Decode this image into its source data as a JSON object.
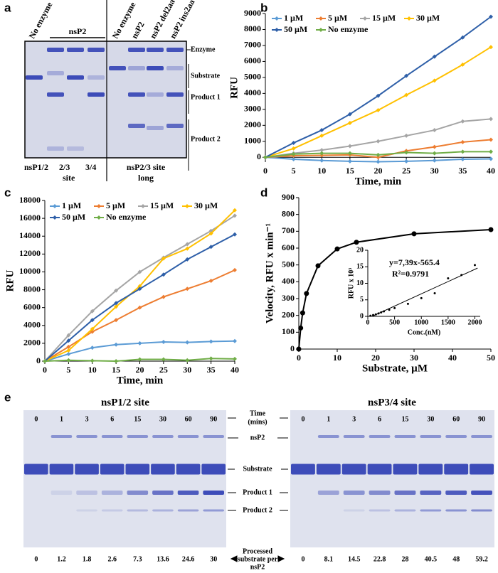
{
  "figure_panels": [
    "a",
    "b",
    "c",
    "d",
    "e"
  ],
  "gel_a": {
    "lane_labels": [
      "No enzyme",
      "nsP2",
      "No enzyme",
      "nsP2",
      "nsP2 del2aa",
      "nsP2 ins2aa"
    ],
    "band_labels": [
      "Enzyme",
      "Substrate",
      "Product 1",
      "Product 2"
    ],
    "bottom_labels": [
      "nsP1/2",
      "2/3",
      "3/4",
      "site",
      "nsP2/3 site",
      "long"
    ]
  },
  "gel_e": {
    "titles": [
      "nsP1/2 site",
      "nsP3/4 site"
    ],
    "time_label": [
      "Time",
      "(mins)"
    ],
    "times": [
      [
        0,
        1,
        3,
        6,
        15,
        30,
        60,
        90
      ],
      [
        0,
        1,
        3,
        6,
        15,
        30,
        60,
        90
      ]
    ],
    "band_labels": [
      "nsP2",
      "Substrate",
      "Product 1",
      "Product 2"
    ],
    "processed_label": [
      "Processed",
      "substrate per",
      "nsP2"
    ],
    "processed": [
      [
        0,
        1.2,
        1.8,
        2.6,
        7.3,
        13.6,
        24.6,
        30
      ],
      [
        0,
        8.1,
        14.5,
        22.8,
        28,
        40.5,
        48,
        59.2
      ]
    ]
  },
  "chart_data": [
    {
      "type": "line",
      "y_label": "RFU",
      "x_label": "Time, min",
      "x": [
        0,
        5,
        10,
        15,
        20,
        25,
        30,
        35,
        40
      ],
      "xlim": [
        0,
        40
      ],
      "xticks": [
        0,
        5,
        10,
        15,
        20,
        25,
        30,
        35,
        40
      ],
      "ylim": [
        -300,
        9000
      ],
      "yticks": [
        0,
        1000,
        2000,
        3000,
        4000,
        5000,
        6000,
        7000,
        8000,
        9000
      ],
      "legend": "upper left",
      "series": [
        {
          "name": "1 µM",
          "color": "#5b9bd5",
          "values": [
            0,
            -120,
            -200,
            -250,
            -280,
            -250,
            -200,
            -120,
            -100
          ]
        },
        {
          "name": "5 µM",
          "color": "#ed7d31",
          "values": [
            0,
            100,
            120,
            150,
            0,
            400,
            650,
            950,
            1100
          ]
        },
        {
          "name": "15 µM",
          "color": "#a5a5a5",
          "values": [
            0,
            250,
            450,
            700,
            1000,
            1350,
            1700,
            2250,
            2400
          ]
        },
        {
          "name": "30 µM",
          "color": "#ffc000",
          "values": [
            0,
            550,
            1350,
            2150,
            2950,
            3900,
            4800,
            5800,
            6900
          ]
        },
        {
          "name": "50 µM",
          "color": "#2e5fa8",
          "values": [
            0,
            900,
            1700,
            2700,
            3850,
            5100,
            6300,
            7500,
            8800
          ]
        },
        {
          "name": "No enzyme",
          "color": "#70ad47",
          "values": [
            0,
            200,
            250,
            250,
            150,
            300,
            250,
            350,
            350
          ]
        }
      ]
    },
    {
      "type": "line",
      "y_label": "RFU",
      "x_label": "Time, min",
      "x": [
        0,
        5,
        10,
        15,
        20,
        25,
        30,
        35,
        40
      ],
      "xlim": [
        0,
        40
      ],
      "xticks": [
        0,
        5,
        10,
        15,
        20,
        25,
        30,
        35,
        40
      ],
      "ylim": [
        0,
        18000
      ],
      "yticks": [
        0,
        2000,
        4000,
        6000,
        8000,
        10000,
        12000,
        14000,
        16000,
        18000
      ],
      "legend": "upper left",
      "series": [
        {
          "name": "1 µM",
          "color": "#5b9bd5",
          "values": [
            0,
            800,
            1500,
            1850,
            2000,
            2150,
            2100,
            2200,
            2250
          ]
        },
        {
          "name": "5 µM",
          "color": "#ed7d31",
          "values": [
            0,
            1600,
            3300,
            4600,
            6000,
            7200,
            8100,
            9000,
            10200
          ]
        },
        {
          "name": "15 µM",
          "color": "#a5a5a5",
          "values": [
            0,
            2900,
            5600,
            7900,
            10000,
            11600,
            13100,
            14600,
            16300
          ]
        },
        {
          "name": "30 µM",
          "color": "#ffc000",
          "values": [
            0,
            1200,
            3600,
            6100,
            8400,
            11500,
            12600,
            14300,
            16900
          ]
        },
        {
          "name": "50 µM",
          "color": "#2e5fa8",
          "values": [
            0,
            2300,
            4600,
            6500,
            8100,
            9700,
            11400,
            12800,
            14200
          ]
        },
        {
          "name": "No enzyme",
          "color": "#70ad47",
          "values": [
            0,
            100,
            50,
            0,
            200,
            200,
            100,
            300,
            250
          ]
        }
      ]
    },
    {
      "type": "line",
      "y_label": "Velocity, RFU x min⁻¹",
      "x_label": "Substrate, µM",
      "x": [
        0,
        0.5,
        1,
        2,
        5,
        10,
        15,
        30,
        50
      ],
      "values": [
        0,
        125,
        215,
        330,
        495,
        595,
        635,
        685,
        710
      ],
      "color": "#000000",
      "xlim": [
        0,
        50
      ],
      "xticks": [
        0,
        10,
        20,
        30,
        40,
        50
      ],
      "ylim": [
        0,
        900
      ],
      "yticks": [
        0,
        100,
        200,
        300,
        400,
        500,
        600,
        700,
        800,
        900
      ]
    },
    {
      "type": "scatter",
      "y_label": "RFU x 10³",
      "x_label": "Conc.(nM)",
      "x": [
        50,
        100,
        150,
        200,
        250,
        300,
        400,
        500,
        750,
        1000,
        1250,
        1500,
        1750,
        2000
      ],
      "values": [
        0.2,
        0.4,
        0.6,
        0.9,
        1.2,
        1.5,
        2,
        2.5,
        3.8,
        5.5,
        7,
        11.5,
        12.5,
        15.5
      ],
      "color": "#000000",
      "xlim": [
        0,
        2100
      ],
      "xticks": [
        0,
        500,
        1000,
        1500,
        2000
      ],
      "ylim": [
        0,
        20
      ],
      "yticks": [
        0,
        5,
        10,
        15,
        20
      ],
      "annotations": [
        "y=7,39x-565.4",
        "R²=0.9791"
      ],
      "trendline": {
        "x": [
          80,
          2050
        ],
        "y": [
          0,
          14.6
        ]
      }
    }
  ]
}
